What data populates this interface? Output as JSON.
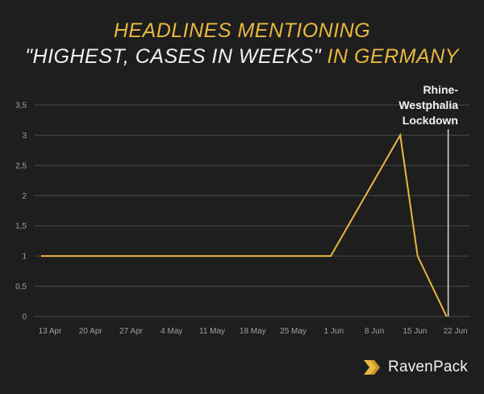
{
  "title": {
    "line1": "HEADLINES MENTIONING",
    "line2_white": "\"HIGHEST, CASES IN WEEKS\"",
    "line2_gold": " IN GERMANY"
  },
  "colors": {
    "background": "#1e1e1e",
    "accent": "#e9b83f",
    "text": "#f2f2f2",
    "grid": "#4a4a4a",
    "annotation_line": "#d9d9d9"
  },
  "logo": {
    "text": "RavenPack",
    "icon": "ravenpack-chevron-icon"
  },
  "chart_data": {
    "type": "line",
    "title": "HEADLINES MENTIONING \"HIGHEST, CASES IN WEEKS\" IN GERMANY",
    "xlabel": "",
    "ylabel": "",
    "x_tick_labels": [
      "13 Apr",
      "20 Apr",
      "27 Apr",
      "4 May",
      "11 May",
      "18 May",
      "25 May",
      "1 Jun",
      "8 Jun",
      "15 Jun",
      "22 Jun"
    ],
    "y_tick_labels": [
      "0",
      "0,5",
      "1",
      "1,5",
      "2",
      "2,5",
      "3",
      "3,5"
    ],
    "ylim": [
      0,
      3.5
    ],
    "xlim_days": [
      0,
      73
    ],
    "grid": "horizontal",
    "series": [
      {
        "color": "#e9b83f",
        "points": [
          {
            "date": "13 Apr",
            "day": 0,
            "y": 1
          },
          {
            "date": "2 Jun",
            "day": 50,
            "y": 1
          },
          {
            "date": "14 Jun",
            "day": 62,
            "y": 3
          },
          {
            "date": "17 Jun",
            "day": 65,
            "y": 1
          },
          {
            "date": "22 Jun",
            "day": 70,
            "y": 0
          }
        ]
      }
    ],
    "annotation": {
      "lines": [
        "Rhine-",
        "Westphalia",
        "Lockdown"
      ],
      "day": 70
    }
  }
}
